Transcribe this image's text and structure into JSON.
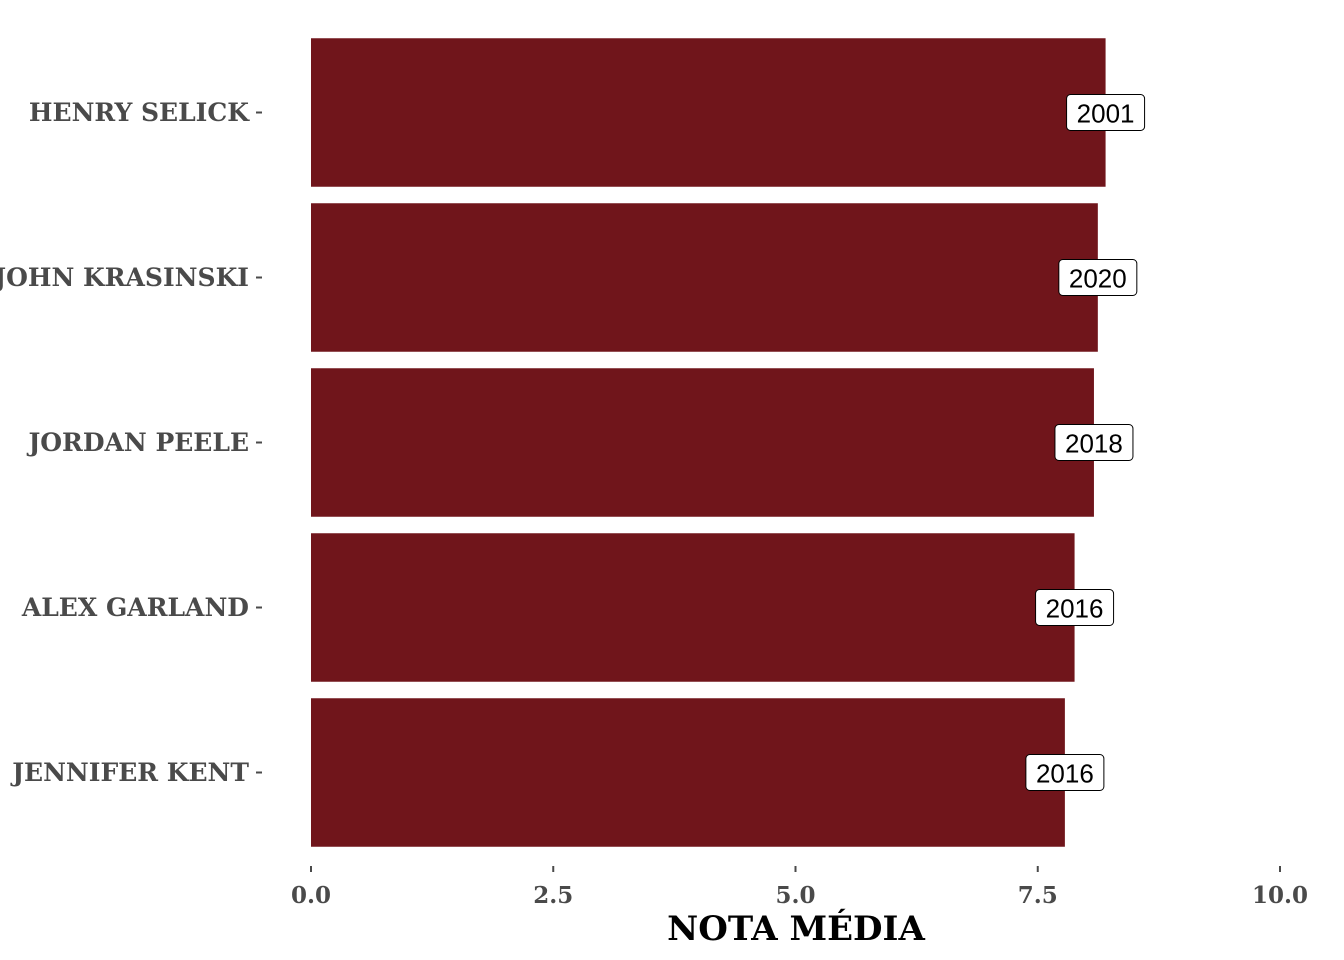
{
  "chart_data": {
    "type": "bar",
    "orientation": "horizontal",
    "categories": [
      "HENRY SELICK",
      "JOHN KRASINSKI",
      "JORDAN PEELE",
      "ALEX GARLAND",
      "JENNIFER KENT"
    ],
    "values": [
      8.2,
      8.12,
      8.08,
      7.88,
      7.78
    ],
    "data_labels": [
      "2001",
      "2020",
      "2018",
      "2016",
      "2016"
    ],
    "xlabel": "NOTA MÉDIA",
    "ylabel": "",
    "xlim": [
      0,
      10
    ],
    "xticks": [
      0,
      2.5,
      5,
      7.5,
      10
    ],
    "xtick_labels": [
      "0.0",
      "2.5",
      "5.0",
      "7.5",
      "10.0"
    ],
    "bar_color": "#70151b",
    "grid": false
  }
}
